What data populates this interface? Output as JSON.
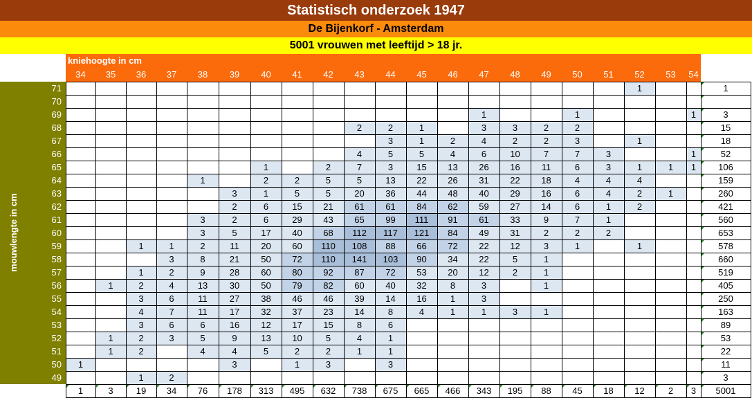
{
  "title": "Statistisch onderzoek 1947",
  "subtitle": "De Bijenkorf - Amsterdam",
  "subtitle2": "5001 vrouwen met leeftijd > 18 jr.",
  "col_axis_label": "kniehoogte in cm",
  "row_axis_label": "mouwlengte in cm",
  "colors": {
    "title_bg": "#9a3b0b",
    "subtitle_bg": "#fb8b0b",
    "subtitle2_bg": "#ffff00",
    "col_header_bg": "#fb6a0b",
    "row_header_bg": "#7f7f00",
    "flag": "#1e8a1e"
  },
  "col_labels": [
    "34",
    "35",
    "36",
    "37",
    "38",
    "39",
    "40",
    "41",
    "42",
    "43",
    "44",
    "45",
    "46",
    "47",
    "48",
    "49",
    "50",
    "51",
    "52",
    "53",
    "54"
  ],
  "rows": [
    {
      "label": "71",
      "values": [
        "",
        "",
        "",
        "",
        "",
        "",
        "",
        "",
        "",
        "",
        "",
        "",
        "",
        "",
        "",
        "",
        "",
        "",
        "1",
        "",
        ""
      ],
      "total": "1"
    },
    {
      "label": "70",
      "values": [
        "",
        "",
        "",
        "",
        "",
        "",
        "",
        "",
        "",
        "",
        "",
        "",
        "",
        "",
        "",
        "",
        "",
        "",
        "",
        "",
        ""
      ],
      "total": ""
    },
    {
      "label": "69",
      "values": [
        "",
        "",
        "",
        "",
        "",
        "",
        "",
        "",
        "",
        "",
        "",
        "",
        "",
        "1",
        "",
        "",
        "1",
        "",
        "",
        "",
        "1"
      ],
      "total": "3"
    },
    {
      "label": "68",
      "values": [
        "",
        "",
        "",
        "",
        "",
        "",
        "",
        "",
        "",
        "2",
        "2",
        "1",
        "",
        "3",
        "3",
        "2",
        "2",
        "",
        "",
        "",
        ""
      ],
      "total": "15"
    },
    {
      "label": "67",
      "values": [
        "",
        "",
        "",
        "",
        "",
        "",
        "",
        "",
        "",
        "",
        "3",
        "1",
        "2",
        "4",
        "2",
        "2",
        "3",
        "",
        "1",
        "",
        ""
      ],
      "total": "18"
    },
    {
      "label": "66",
      "values": [
        "",
        "",
        "",
        "",
        "",
        "",
        "",
        "",
        "",
        "4",
        "5",
        "5",
        "4",
        "6",
        "10",
        "7",
        "7",
        "3",
        "",
        "",
        "1"
      ],
      "total": "52"
    },
    {
      "label": "65",
      "values": [
        "",
        "",
        "",
        "",
        "",
        "",
        "1",
        "",
        "2",
        "7",
        "3",
        "15",
        "13",
        "26",
        "16",
        "11",
        "6",
        "3",
        "1",
        "1",
        "1"
      ],
      "total": "106"
    },
    {
      "label": "64",
      "values": [
        "",
        "",
        "",
        "",
        "1",
        "",
        "2",
        "2",
        "5",
        "5",
        "13",
        "22",
        "26",
        "31",
        "22",
        "18",
        "4",
        "4",
        "4",
        "",
        ""
      ],
      "total": "159"
    },
    {
      "label": "63",
      "values": [
        "",
        "",
        "",
        "",
        "",
        "3",
        "1",
        "5",
        "5",
        "20",
        "36",
        "44",
        "48",
        "40",
        "29",
        "16",
        "6",
        "4",
        "2",
        "1",
        ""
      ],
      "total": "260"
    },
    {
      "label": "62",
      "values": [
        "",
        "",
        "",
        "",
        "",
        "2",
        "6",
        "15",
        "21",
        "61",
        "61",
        "84",
        "62",
        "59",
        "27",
        "14",
        "6",
        "1",
        "2",
        "",
        ""
      ],
      "total": "421"
    },
    {
      "label": "61",
      "values": [
        "",
        "",
        "",
        "",
        "3",
        "2",
        "6",
        "29",
        "43",
        "65",
        "99",
        "111",
        "91",
        "61",
        "33",
        "9",
        "7",
        "1",
        "",
        "",
        ""
      ],
      "total": "560"
    },
    {
      "label": "60",
      "values": [
        "",
        "",
        "",
        "",
        "3",
        "5",
        "17",
        "40",
        "68",
        "112",
        "117",
        "121",
        "84",
        "49",
        "31",
        "2",
        "2",
        "2",
        "",
        "",
        ""
      ],
      "total": "653"
    },
    {
      "label": "59",
      "values": [
        "",
        "",
        "1",
        "1",
        "2",
        "11",
        "20",
        "60",
        "110",
        "108",
        "88",
        "66",
        "72",
        "22",
        "12",
        "3",
        "1",
        "",
        "1",
        "",
        ""
      ],
      "total": "578"
    },
    {
      "label": "58",
      "values": [
        "",
        "",
        "",
        "3",
        "8",
        "21",
        "50",
        "72",
        "110",
        "141",
        "103",
        "90",
        "34",
        "22",
        "5",
        "1",
        "",
        "",
        "",
        "",
        ""
      ],
      "total": "660"
    },
    {
      "label": "57",
      "values": [
        "",
        "",
        "1",
        "2",
        "9",
        "28",
        "60",
        "80",
        "92",
        "87",
        "72",
        "53",
        "20",
        "12",
        "2",
        "1",
        "",
        "",
        "",
        "",
        ""
      ],
      "total": "519"
    },
    {
      "label": "56",
      "values": [
        "",
        "1",
        "2",
        "4",
        "13",
        "30",
        "50",
        "79",
        "82",
        "60",
        "40",
        "32",
        "8",
        "3",
        "",
        "1",
        "",
        "",
        "",
        "",
        ""
      ],
      "total": "405"
    },
    {
      "label": "55",
      "values": [
        "",
        "",
        "3",
        "6",
        "11",
        "27",
        "38",
        "46",
        "46",
        "39",
        "14",
        "16",
        "1",
        "3",
        "",
        "",
        "",
        "",
        "",
        "",
        ""
      ],
      "total": "250"
    },
    {
      "label": "54",
      "values": [
        "",
        "",
        "4",
        "7",
        "11",
        "17",
        "32",
        "37",
        "23",
        "14",
        "8",
        "4",
        "1",
        "1",
        "3",
        "1",
        "",
        "",
        "",
        "",
        ""
      ],
      "total": "163"
    },
    {
      "label": "53",
      "values": [
        "",
        "",
        "3",
        "6",
        "6",
        "16",
        "12",
        "17",
        "15",
        "8",
        "6",
        "",
        "",
        "",
        "",
        "",
        "",
        "",
        "",
        "",
        ""
      ],
      "total": "89"
    },
    {
      "label": "52",
      "values": [
        "",
        "1",
        "2",
        "3",
        "5",
        "9",
        "13",
        "10",
        "5",
        "4",
        "1",
        "",
        "",
        "",
        "",
        "",
        "",
        "",
        "",
        "",
        ""
      ],
      "total": "53"
    },
    {
      "label": "51",
      "values": [
        "",
        "1",
        "2",
        "",
        "4",
        "4",
        "5",
        "2",
        "2",
        "1",
        "1",
        "",
        "",
        "",
        "",
        "",
        "",
        "",
        "",
        "",
        ""
      ],
      "total": "22"
    },
    {
      "label": "50",
      "values": [
        "1",
        "",
        "",
        "",
        "",
        "3",
        "",
        "1",
        "3",
        "",
        "3",
        "",
        "",
        "",
        "",
        "",
        "",
        "",
        "",
        "",
        ""
      ],
      "total": "11"
    },
    {
      "label": "49",
      "values": [
        "",
        "",
        "1",
        "2",
        "",
        "",
        "",
        "",
        "",
        "",
        "",
        "",
        "",
        "",
        "",
        "",
        "",
        "",
        "",
        "",
        ""
      ],
      "total": "3"
    }
  ],
  "col_totals": [
    "1",
    "3",
    "19",
    "34",
    "76",
    "178",
    "313",
    "495",
    "632",
    "738",
    "675",
    "665",
    "466",
    "343",
    "195",
    "88",
    "45",
    "18",
    "12",
    "2",
    "3"
  ],
  "grand_total": "5001"
}
